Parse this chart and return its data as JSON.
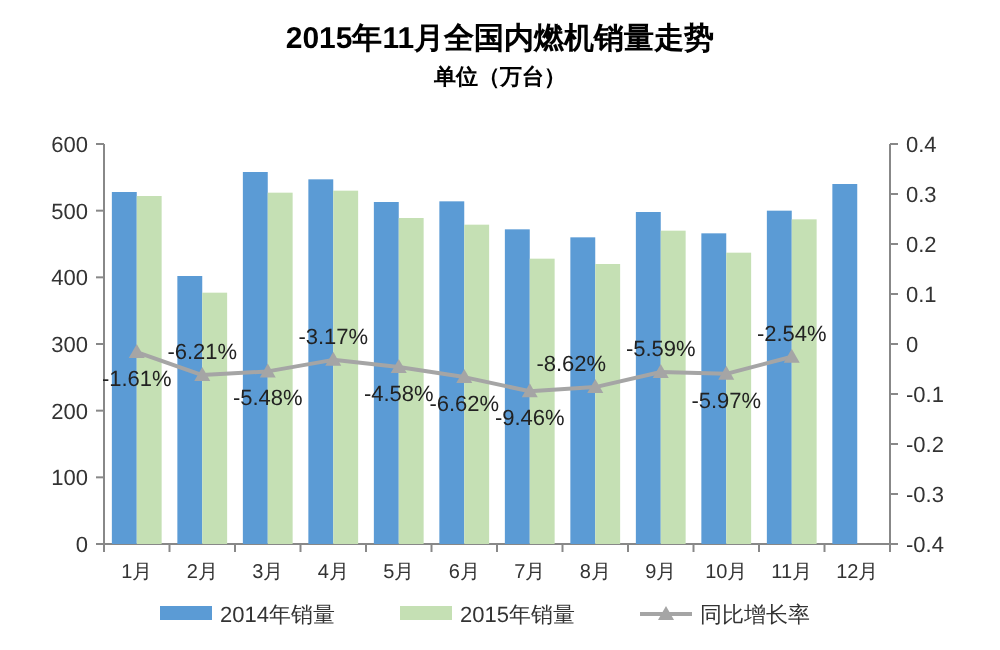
{
  "chart_data": {
    "type": "bar",
    "title": "2015年11月全国内燃机销量走势",
    "subtitle": "单位（万台）",
    "categories": [
      "1月",
      "2月",
      "3月",
      "4月",
      "5月",
      "6月",
      "7月",
      "8月",
      "9月",
      "10月",
      "11月",
      "12月"
    ],
    "series": [
      {
        "name": "2014年销量",
        "color": "#5b9bd5",
        "values": [
          528,
          402,
          558,
          547,
          513,
          514,
          472,
          460,
          498,
          466,
          500,
          540
        ]
      },
      {
        "name": "2015年销量",
        "color": "#c5e0b4",
        "values": [
          522,
          377,
          527,
          530,
          489,
          479,
          428,
          420,
          470,
          437,
          487,
          null
        ]
      },
      {
        "name": "同比增长率",
        "type": "line",
        "axis": "y2",
        "color": "#a5a5a5",
        "marker": "triangle",
        "values": [
          -0.0161,
          -0.0621,
          -0.0548,
          -0.0317,
          -0.0458,
          -0.0662,
          -0.0946,
          -0.0862,
          -0.0559,
          -0.0597,
          -0.0254,
          null
        ],
        "value_labels": [
          "-1.61%",
          "-6.21%",
          "-5.48%",
          "-3.17%",
          "-4.58%",
          "-6.62%",
          "-9.46%",
          "-8.62%",
          "-5.59%",
          "-5.97%",
          "-2.54%",
          null
        ]
      }
    ],
    "ylim": [
      0,
      600
    ],
    "yticks": [
      0,
      100,
      200,
      300,
      400,
      500,
      600
    ],
    "y2lim": [
      -0.4,
      0.4
    ],
    "y2ticks": [
      0.4,
      0.3,
      0.2,
      0.1,
      0,
      -0.1,
      -0.2,
      -0.3,
      -0.4
    ],
    "grid": false,
    "legend": "bottom"
  }
}
